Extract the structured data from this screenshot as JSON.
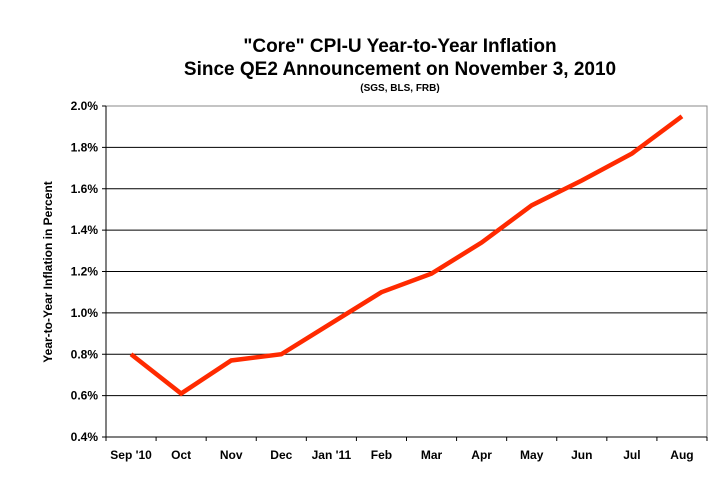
{
  "chart_data": {
    "type": "line",
    "title": "\"Core\" CPI-U Year-to-Year Inflation",
    "subtitle": "Since QE2 Announcement on November 3, 2010",
    "source": "(SGS, BLS, FRB)",
    "xlabel": "",
    "ylabel": "Year-to-Year Inflation in Percent",
    "ylim": [
      0.4,
      2.0
    ],
    "yticks": [
      "0.4%",
      "0.6%",
      "0.8%",
      "1.0%",
      "1.2%",
      "1.4%",
      "1.6%",
      "1.8%",
      "2.0%"
    ],
    "grid": true,
    "categories": [
      "Sep '10",
      "Oct",
      "Nov",
      "Dec",
      "Jan '11",
      "Feb",
      "Mar",
      "Apr",
      "May",
      "Jun",
      "Jul",
      "Aug"
    ],
    "series": [
      {
        "name": "Core CPI-U",
        "color": "#ff2a00",
        "values": [
          0.8,
          0.61,
          0.77,
          0.8,
          0.95,
          1.1,
          1.19,
          1.34,
          1.52,
          1.64,
          1.77,
          1.95
        ]
      }
    ]
  }
}
